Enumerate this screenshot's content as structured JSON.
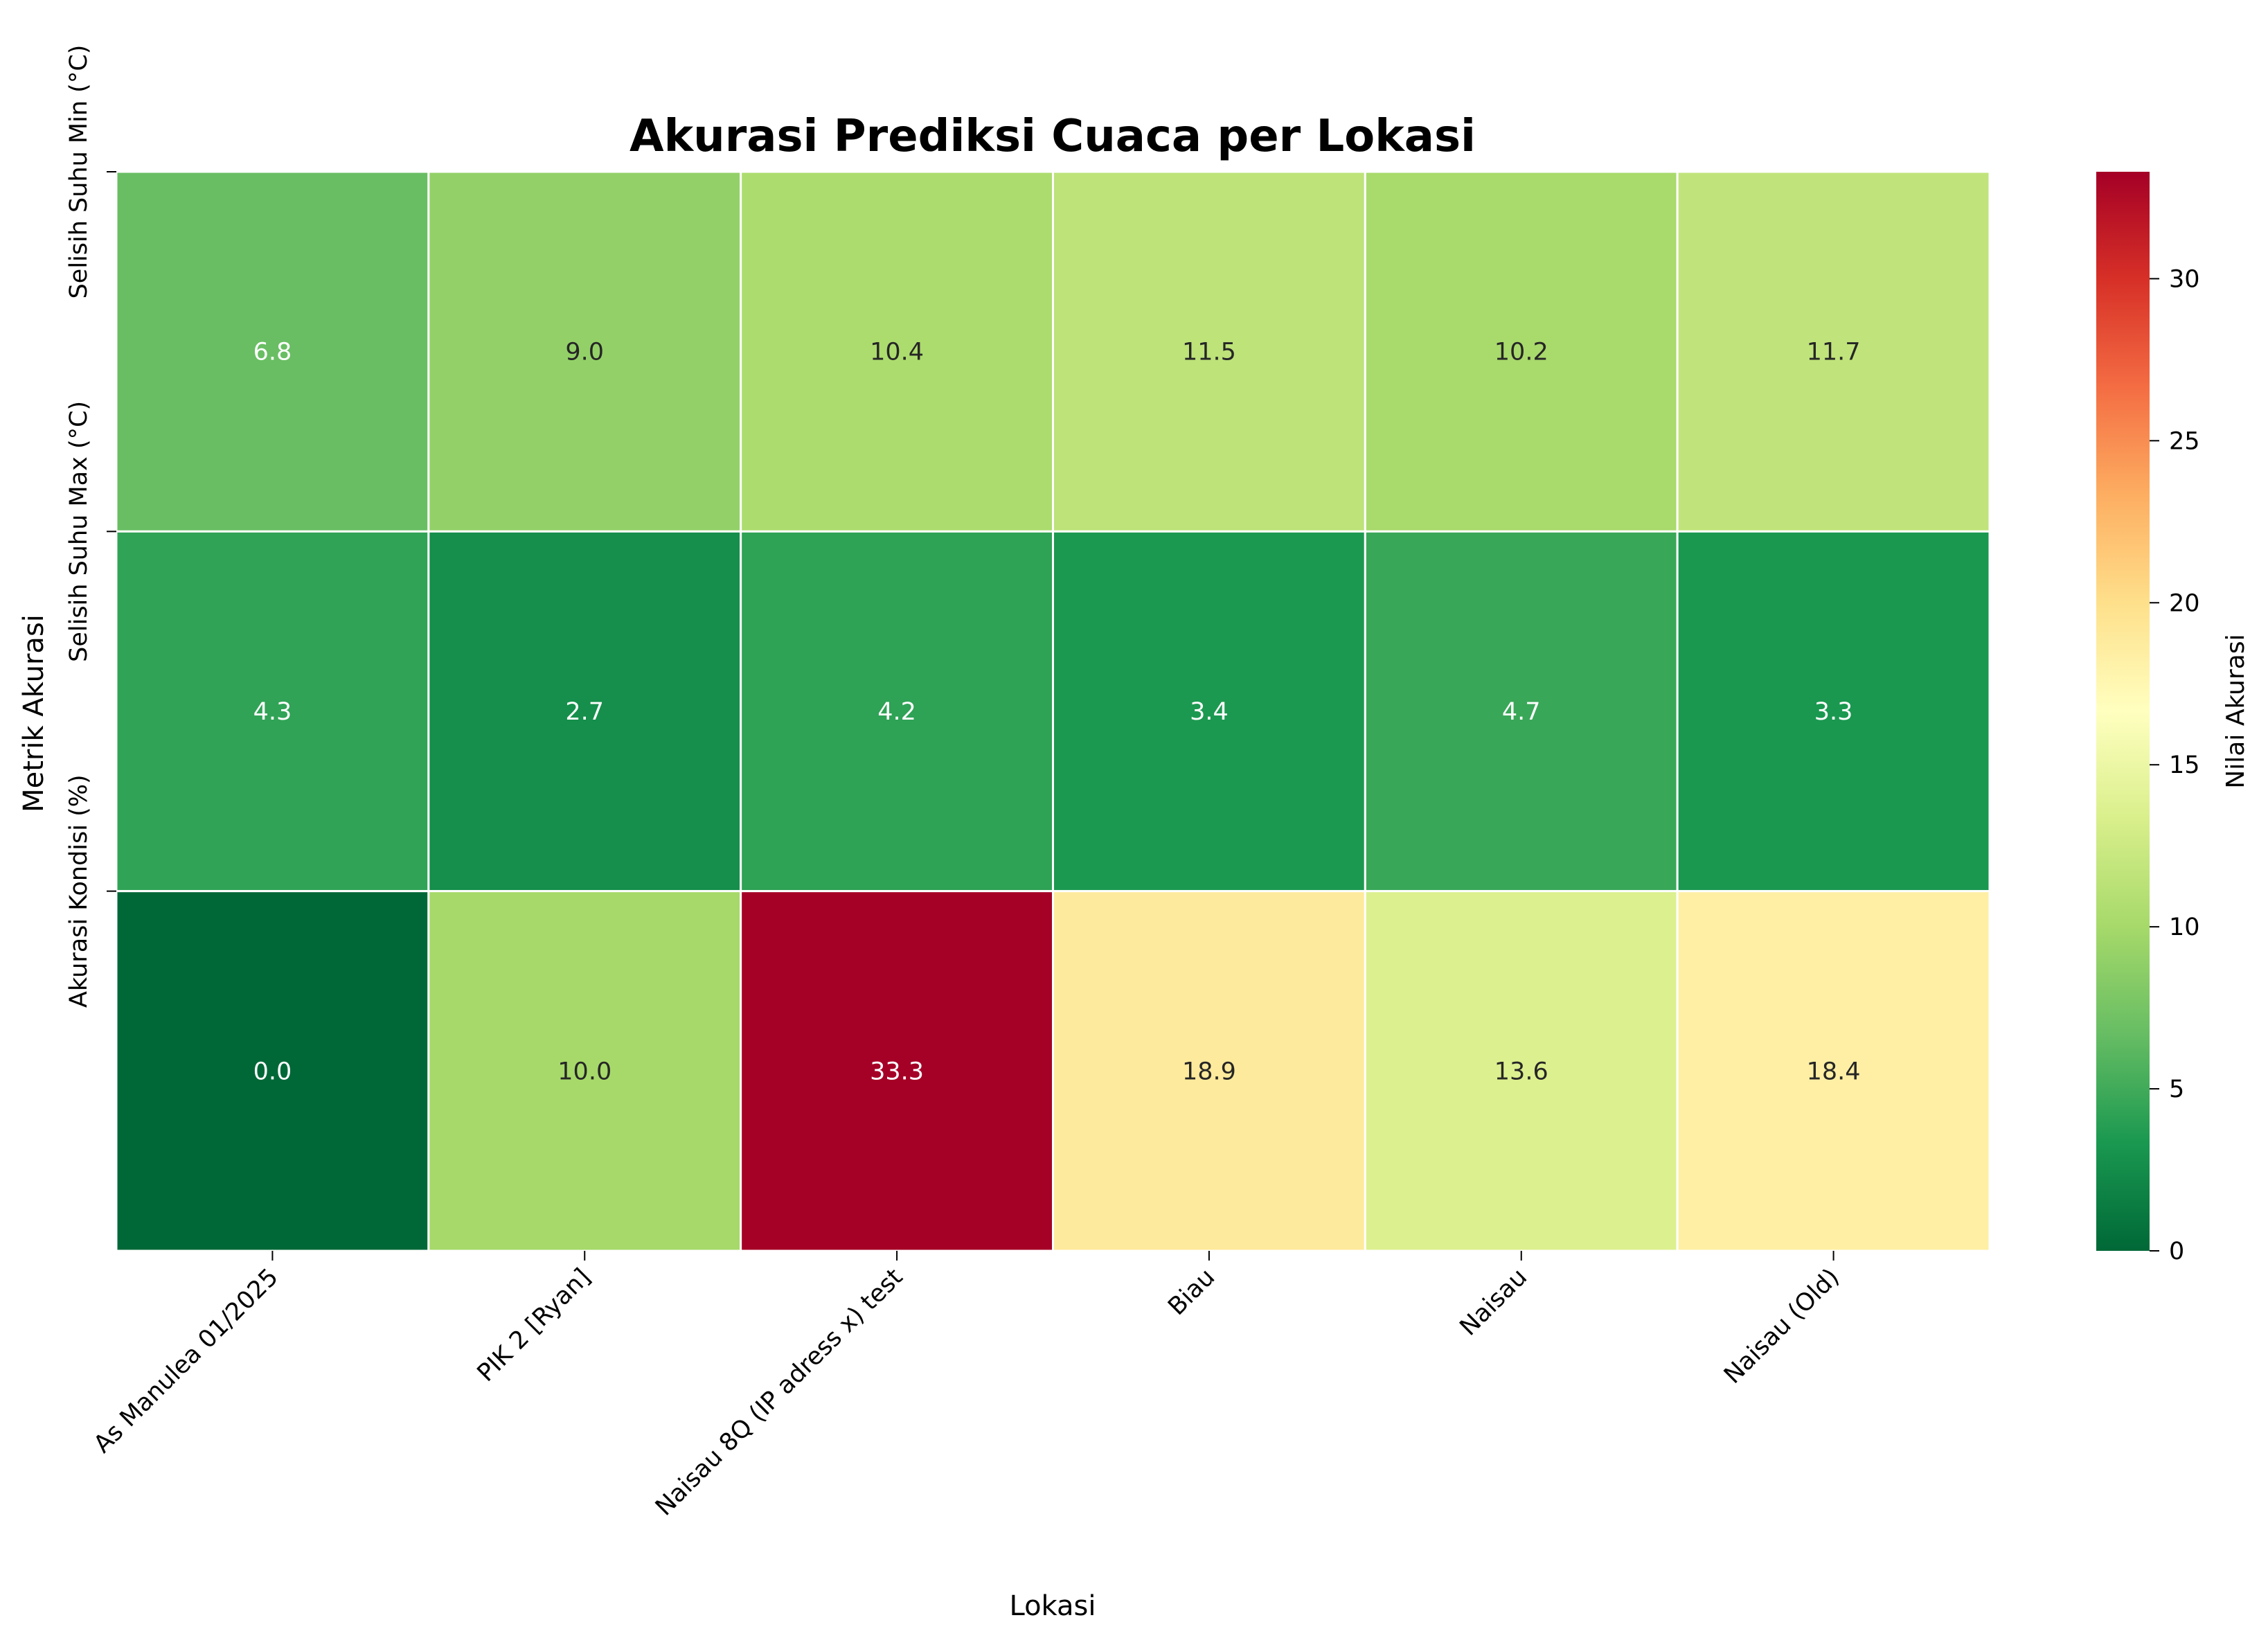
{
  "chart_data": {
    "type": "heatmap",
    "title": "Akurasi Prediksi Cuaca per Lokasi",
    "xlabel": "Lokasi",
    "ylabel": "Metrik Akurasi",
    "colorbar_label": "Nilai Akurasi",
    "colormap": "RdYlGn_r",
    "colorbar_range": [
      0,
      33.3
    ],
    "colorbar_ticks": [
      "0",
      "5",
      "10",
      "15",
      "20",
      "25",
      "30"
    ],
    "x_categories": [
      "As Manulea 01/2025",
      "PIK 2 [Ryan]",
      "Naisau 8Q (IP adress x) test",
      "Biau",
      "Naisau",
      "Naisau (Old)"
    ],
    "y_categories": [
      "Selisih Suhu Min (°C)",
      "Selisih Suhu Max (°C)",
      "Akurasi Kondisi (%)"
    ],
    "values": [
      [
        6.8,
        9.0,
        10.4,
        11.5,
        10.2,
        11.7
      ],
      [
        4.3,
        2.7,
        4.2,
        3.4,
        4.7,
        3.3
      ],
      [
        0.0,
        10.0,
        33.3,
        18.9,
        13.6,
        18.4
      ]
    ],
    "annotations": [
      [
        "6.8",
        "9.0",
        "10.4",
        "11.5",
        "10.2",
        "11.7"
      ],
      [
        "4.3",
        "2.7",
        "4.2",
        "3.4",
        "4.7",
        "3.3"
      ],
      [
        "0.0",
        "10.0",
        "33.3",
        "18.9",
        "13.6",
        "18.4"
      ]
    ],
    "colormap_stops": [
      "#006837",
      "#1a9850",
      "#66bd63",
      "#a6d96a",
      "#d9ef8b",
      "#ffffbf",
      "#fee08b",
      "#fdae61",
      "#f46d43",
      "#d73027",
      "#a50026"
    ]
  }
}
